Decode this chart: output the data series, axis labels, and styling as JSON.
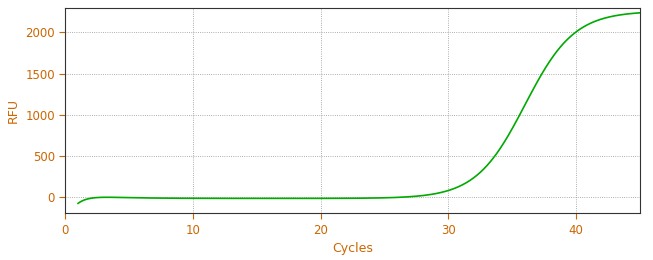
{
  "title": "",
  "xlabel": "Cycles",
  "ylabel": "RFU",
  "line_color": "#00aa00",
  "line_width": 1.2,
  "xlim": [
    0,
    45
  ],
  "ylim": [
    -200,
    2300
  ],
  "xticks": [
    0,
    10,
    20,
    30,
    40
  ],
  "yticks": [
    0,
    500,
    1000,
    1500,
    2000
  ],
  "grid_color": "#888888",
  "background_color": "#ffffff",
  "xlabel_color": "#cc6600",
  "ylabel_color": "#cc6600",
  "tick_label_color": "#cc6600",
  "spine_color": "#333333",
  "sigmoid_L": 2280,
  "sigmoid_k": 0.52,
  "sigmoid_x0": 36.0,
  "x_start": 1,
  "x_end": 45
}
